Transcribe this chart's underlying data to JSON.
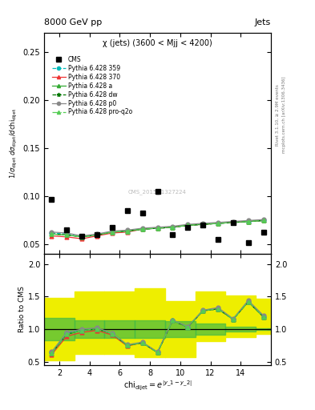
{
  "title_top": "8000 GeV pp",
  "title_right": "Jets",
  "plot_title": "χ (jets) (3600 < Mjj < 4200)",
  "watermark": "CMS_2015_I1327224",
  "rivet_label": "Rivet 3.1.10, ≥ 2.9M events",
  "mcplots_label": "mcplots.cern.ch [arXiv:1306.3436]",
  "ylabel_ratio": "Ratio to CMS",
  "xlim": [
    1,
    16
  ],
  "ylim_main": [
    0.04,
    0.27
  ],
  "ylim_ratio": [
    0.45,
    2.15
  ],
  "yticks_main": [
    0.05,
    0.1,
    0.15,
    0.2,
    0.25
  ],
  "yticks_ratio": [
    0.5,
    1.0,
    1.5,
    2.0
  ],
  "xticks": [
    2,
    4,
    6,
    8,
    10,
    12,
    14
  ],
  "cms_x": [
    1.5,
    2.5,
    3.5,
    4.5,
    5.5,
    6.5,
    7.5,
    8.5,
    9.5,
    10.5,
    11.5,
    12.5,
    13.5,
    14.5,
    15.5
  ],
  "cms_y": [
    0.097,
    0.065,
    0.059,
    0.06,
    0.068,
    0.085,
    0.083,
    0.105,
    0.06,
    0.068,
    0.07,
    0.055,
    0.073,
    0.052,
    0.063
  ],
  "pythia_x": [
    1.5,
    2.5,
    3.5,
    4.5,
    5.5,
    6.5,
    7.5,
    8.5,
    9.5,
    10.5,
    11.5,
    12.5,
    13.5,
    14.5,
    15.5
  ],
  "py359_y": [
    0.062,
    0.061,
    0.058,
    0.06,
    0.063,
    0.064,
    0.066,
    0.067,
    0.068,
    0.07,
    0.071,
    0.072,
    0.073,
    0.074,
    0.075
  ],
  "py370_y": [
    0.059,
    0.058,
    0.056,
    0.059,
    0.062,
    0.063,
    0.066,
    0.067,
    0.068,
    0.07,
    0.071,
    0.072,
    0.073,
    0.074,
    0.075
  ],
  "pya_y": [
    0.061,
    0.06,
    0.058,
    0.06,
    0.063,
    0.064,
    0.066,
    0.067,
    0.068,
    0.07,
    0.071,
    0.072,
    0.073,
    0.074,
    0.075
  ],
  "pydw_y": [
    0.061,
    0.06,
    0.058,
    0.06,
    0.063,
    0.064,
    0.066,
    0.067,
    0.068,
    0.07,
    0.071,
    0.072,
    0.073,
    0.074,
    0.075
  ],
  "pyp0_y": [
    0.063,
    0.062,
    0.059,
    0.061,
    0.064,
    0.065,
    0.067,
    0.068,
    0.069,
    0.071,
    0.072,
    0.073,
    0.074,
    0.075,
    0.076
  ],
  "pyq2o_y": [
    0.061,
    0.06,
    0.058,
    0.06,
    0.063,
    0.064,
    0.066,
    0.067,
    0.068,
    0.07,
    0.071,
    0.072,
    0.073,
    0.074,
    0.075
  ],
  "ratio_359": [
    0.64,
    0.94,
    0.98,
    1.0,
    0.93,
    0.75,
    0.79,
    0.64,
    1.13,
    1.03,
    1.28,
    1.31,
    1.15,
    1.42,
    1.19
  ],
  "ratio_370": [
    0.61,
    0.89,
    0.95,
    0.98,
    0.91,
    0.74,
    0.79,
    0.64,
    1.13,
    1.03,
    1.28,
    1.31,
    1.15,
    1.42,
    1.19
  ],
  "ratio_a": [
    0.63,
    0.92,
    0.98,
    1.0,
    0.93,
    0.75,
    0.79,
    0.64,
    1.13,
    1.03,
    1.28,
    1.31,
    1.15,
    1.42,
    1.19
  ],
  "ratio_dw": [
    0.63,
    0.92,
    0.98,
    1.0,
    0.93,
    0.75,
    0.79,
    0.64,
    1.13,
    1.03,
    1.28,
    1.31,
    1.15,
    1.42,
    1.19
  ],
  "ratio_p0": [
    0.65,
    0.95,
    1.0,
    1.02,
    0.94,
    0.76,
    0.8,
    0.65,
    1.14,
    1.04,
    1.29,
    1.33,
    1.16,
    1.44,
    1.21
  ],
  "ratio_q2o": [
    0.63,
    0.92,
    0.98,
    1.0,
    0.93,
    0.75,
    0.79,
    0.64,
    1.13,
    1.03,
    1.28,
    1.31,
    1.15,
    1.42,
    1.19
  ],
  "band_edges": [
    1,
    3,
    5,
    7,
    9,
    11,
    13,
    15,
    16
  ],
  "band_yellow_lo": [
    0.52,
    0.62,
    0.62,
    0.57,
    0.57,
    0.82,
    0.88,
    0.93,
    0.93
  ],
  "band_yellow_hi": [
    1.48,
    1.58,
    1.58,
    1.63,
    1.43,
    1.58,
    1.52,
    1.47,
    1.47
  ],
  "band_green_lo": [
    0.83,
    0.86,
    0.86,
    0.86,
    0.88,
    0.91,
    0.96,
    0.99,
    0.99
  ],
  "band_green_hi": [
    1.17,
    1.14,
    1.14,
    1.14,
    1.12,
    1.09,
    1.04,
    1.01,
    1.01
  ],
  "color_359": "#00BBBB",
  "color_370": "#EE3333",
  "color_a": "#33AA33",
  "color_dw": "#007700",
  "color_p0": "#888888",
  "color_q2o": "#55CC55",
  "color_green_band": "#44BB44",
  "color_yellow_band": "#EEEE00"
}
